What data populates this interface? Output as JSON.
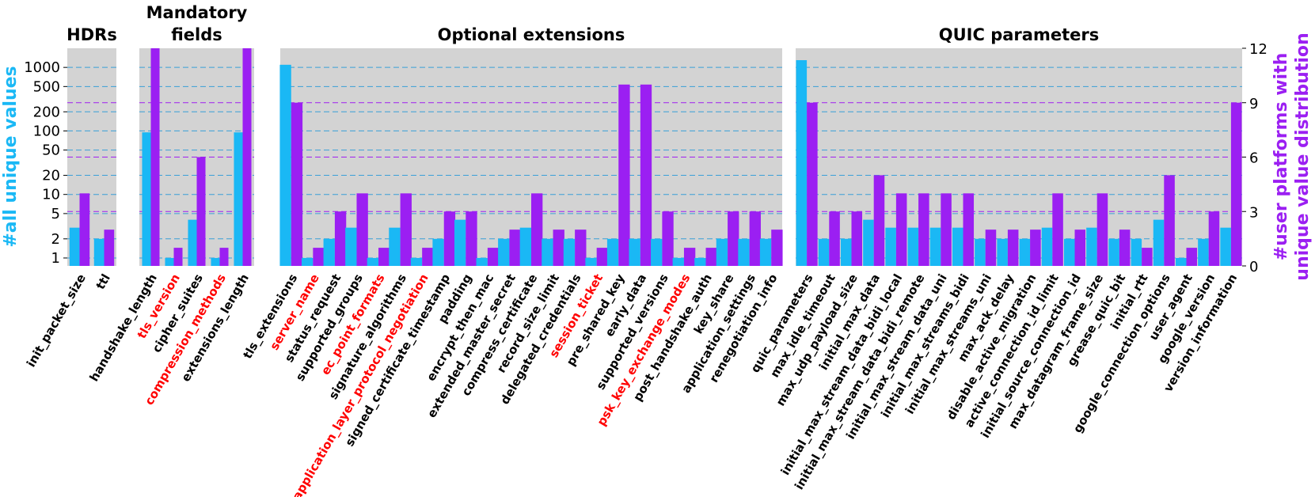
{
  "chart_data": {
    "type": "bar",
    "colors": {
      "left_series": "#1ab8f5",
      "right_series": "#9b1ff2",
      "highlight_label": "#ff0000",
      "panel_bg": "#d3d3d3",
      "left_grid": "#3aa0d8",
      "right_grid": "#a020f0"
    },
    "left_axis": {
      "label": "#all unique values",
      "scale": "log",
      "range": [
        0.75,
        2000
      ],
      "ticks": [
        1,
        2,
        5,
        10,
        20,
        50,
        100,
        200,
        500,
        1000
      ],
      "tick_labels": [
        "1",
        "2",
        "5",
        "10",
        "20",
        "50",
        "100",
        "200",
        "500",
        "1000"
      ]
    },
    "right_axis": {
      "label_line1": "#user platforms with",
      "label_line2": "unique value distribution",
      "scale": "linear",
      "range": [
        0,
        12
      ],
      "ticks": [
        0,
        3,
        6,
        9,
        12
      ],
      "tick_labels": [
        "0",
        "3",
        "6",
        "9",
        "12"
      ]
    },
    "panels": [
      {
        "title": "HDRs",
        "categories": [
          {
            "name": "init_packet_size",
            "highlight": false,
            "all_unique": 3,
            "platforms": 4
          },
          {
            "name": "ttl",
            "highlight": false,
            "all_unique": 2,
            "platforms": 2
          }
        ]
      },
      {
        "title_line1": "Mandatory",
        "title_line2": "fields",
        "categories": [
          {
            "name": "handshake_length",
            "highlight": false,
            "all_unique": 95,
            "platforms": 12
          },
          {
            "name": "tls_version",
            "highlight": true,
            "all_unique": 1,
            "platforms": 1
          },
          {
            "name": "cipher_suites",
            "highlight": false,
            "all_unique": 4,
            "platforms": 6
          },
          {
            "name": "compression_methods",
            "highlight": true,
            "all_unique": 1,
            "platforms": 1
          },
          {
            "name": "extensions_length",
            "highlight": false,
            "all_unique": 95,
            "platforms": 12
          }
        ]
      },
      {
        "title": "Optional extensions",
        "categories": [
          {
            "name": "tls_extensions",
            "highlight": false,
            "all_unique": 1100,
            "platforms": 9
          },
          {
            "name": "server_name",
            "highlight": true,
            "all_unique": 1,
            "platforms": 1
          },
          {
            "name": "status_request",
            "highlight": false,
            "all_unique": 2,
            "platforms": 3
          },
          {
            "name": "supported_groups",
            "highlight": false,
            "all_unique": 3,
            "platforms": 4
          },
          {
            "name": "ec_point_formats",
            "highlight": true,
            "all_unique": 1,
            "platforms": 1
          },
          {
            "name": "signature_algorithms",
            "highlight": false,
            "all_unique": 3,
            "platforms": 4
          },
          {
            "name": "application_layer_protocol_negotiation",
            "highlight": true,
            "all_unique": 1,
            "platforms": 1
          },
          {
            "name": "signed_certificate_timestamp",
            "highlight": false,
            "all_unique": 2,
            "platforms": 3
          },
          {
            "name": "padding",
            "highlight": false,
            "all_unique": 4,
            "platforms": 3
          },
          {
            "name": "encrypt_then_mac",
            "highlight": false,
            "all_unique": 1,
            "platforms": 1
          },
          {
            "name": "extended_master_secret",
            "highlight": false,
            "all_unique": 2,
            "platforms": 2
          },
          {
            "name": "compress_certificate",
            "highlight": false,
            "all_unique": 3,
            "platforms": 4
          },
          {
            "name": "record_size_limit",
            "highlight": false,
            "all_unique": 2,
            "platforms": 2
          },
          {
            "name": "delegated_credentials",
            "highlight": false,
            "all_unique": 2,
            "platforms": 2
          },
          {
            "name": "session_ticket",
            "highlight": true,
            "all_unique": 1,
            "platforms": 1
          },
          {
            "name": "pre_shared_key",
            "highlight": false,
            "all_unique": 2,
            "platforms": 10
          },
          {
            "name": "early_data",
            "highlight": false,
            "all_unique": 2,
            "platforms": 10
          },
          {
            "name": "supported_versions",
            "highlight": false,
            "all_unique": 2,
            "platforms": 3
          },
          {
            "name": "psk_key_exchange_modes",
            "highlight": true,
            "all_unique": 1,
            "platforms": 1
          },
          {
            "name": "post_handshake_auth",
            "highlight": false,
            "all_unique": 1,
            "platforms": 1
          },
          {
            "name": "key_share",
            "highlight": false,
            "all_unique": 2,
            "platforms": 3
          },
          {
            "name": "application_settings",
            "highlight": false,
            "all_unique": 2,
            "platforms": 3
          },
          {
            "name": "renegotiation_info",
            "highlight": false,
            "all_unique": 2,
            "platforms": 2
          }
        ]
      },
      {
        "title": "QUIC parameters",
        "categories": [
          {
            "name": "quic_parameters",
            "highlight": false,
            "all_unique": 1300,
            "platforms": 9
          },
          {
            "name": "max_idle_timeout",
            "highlight": false,
            "all_unique": 2,
            "platforms": 3
          },
          {
            "name": "max_udp_payload_size",
            "highlight": false,
            "all_unique": 2,
            "platforms": 3
          },
          {
            "name": "initial_max_data",
            "highlight": false,
            "all_unique": 4,
            "platforms": 5
          },
          {
            "name": "initial_max_stream_data_bidi_local",
            "highlight": false,
            "all_unique": 3,
            "platforms": 4
          },
          {
            "name": "initial_max_stream_data_bidi_remote",
            "highlight": false,
            "all_unique": 3,
            "platforms": 4
          },
          {
            "name": "initial_max_stream_data_uni",
            "highlight": false,
            "all_unique": 3,
            "platforms": 4
          },
          {
            "name": "initial_max_streams_bidi",
            "highlight": false,
            "all_unique": 3,
            "platforms": 4
          },
          {
            "name": "initial_max_streams_uni",
            "highlight": false,
            "all_unique": 2,
            "platforms": 2
          },
          {
            "name": "max_ack_delay",
            "highlight": false,
            "all_unique": 2,
            "platforms": 2
          },
          {
            "name": "disable_active_migration",
            "highlight": false,
            "all_unique": 2,
            "platforms": 2
          },
          {
            "name": "active_connection_id_limit",
            "highlight": false,
            "all_unique": 3,
            "platforms": 4
          },
          {
            "name": "initial_source_connection_id",
            "highlight": false,
            "all_unique": 2,
            "platforms": 2
          },
          {
            "name": "max_datagram_frame_size",
            "highlight": false,
            "all_unique": 3,
            "platforms": 4
          },
          {
            "name": "grease_quic_bit",
            "highlight": false,
            "all_unique": 2,
            "platforms": 2
          },
          {
            "name": "initial_rtt",
            "highlight": false,
            "all_unique": 2,
            "platforms": 1
          },
          {
            "name": "google_connection_options",
            "highlight": false,
            "all_unique": 4,
            "platforms": 5
          },
          {
            "name": "user_agent",
            "highlight": false,
            "all_unique": 1,
            "platforms": 1
          },
          {
            "name": "google_version",
            "highlight": false,
            "all_unique": 2,
            "platforms": 3
          },
          {
            "name": "version_information",
            "highlight": false,
            "all_unique": 3,
            "platforms": 9
          }
        ]
      }
    ]
  }
}
